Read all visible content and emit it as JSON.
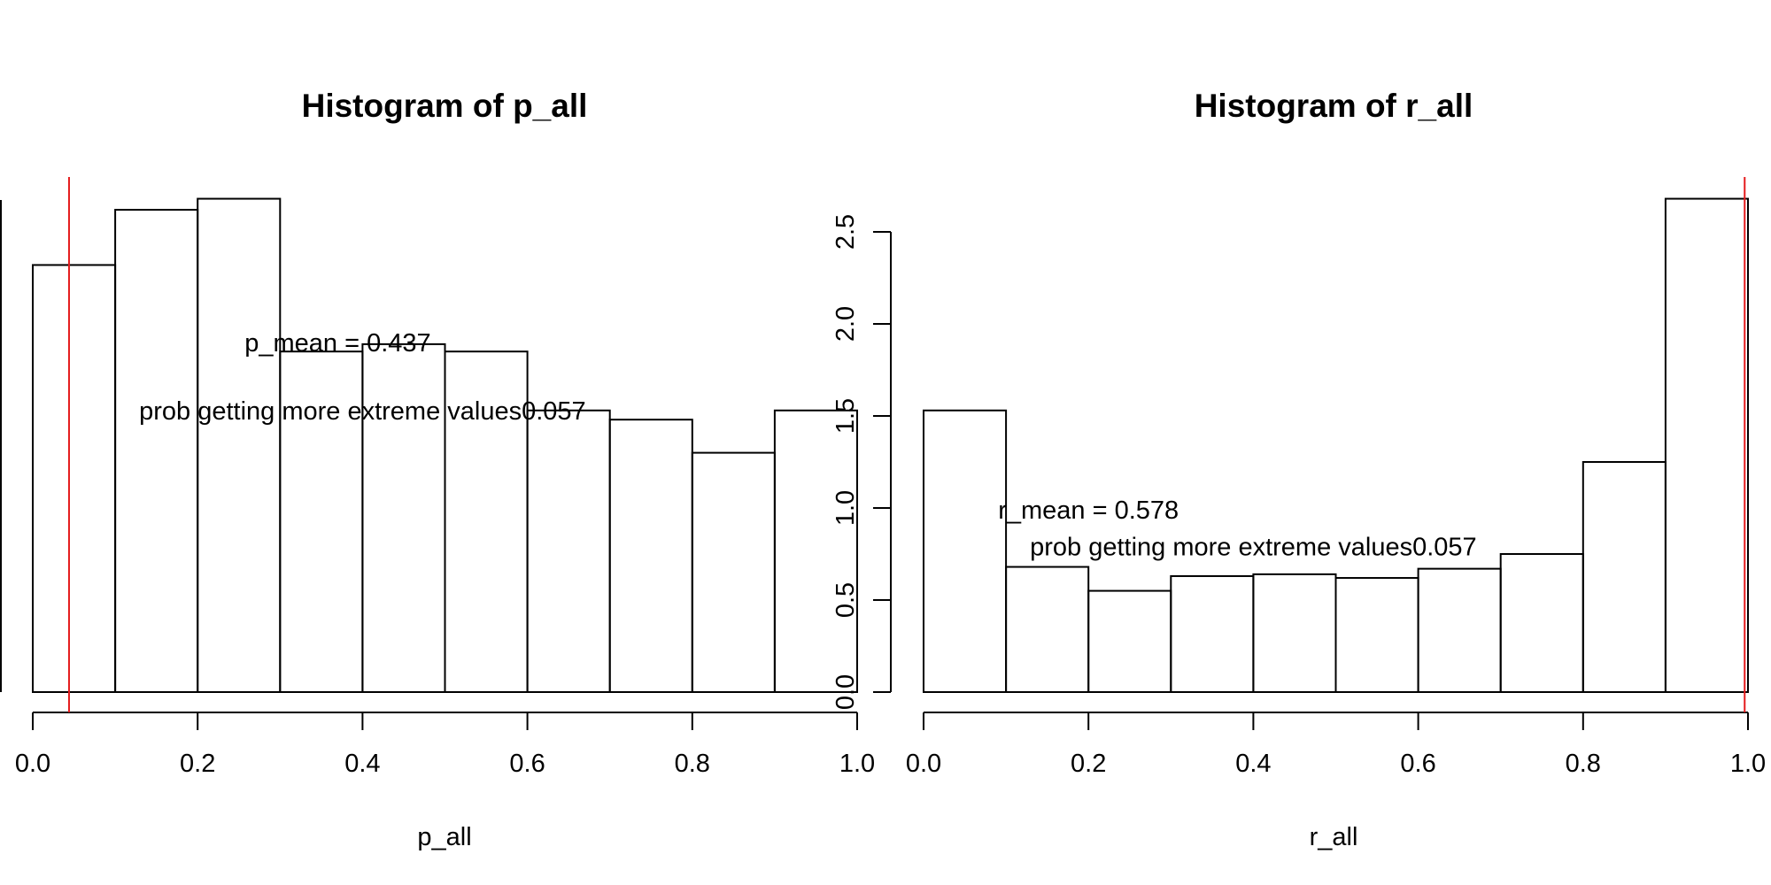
{
  "chart_data": [
    {
      "type": "bar",
      "title": "Histogram of p_all",
      "xlabel": "p_all",
      "ylabel": "",
      "xlim": [
        0,
        1
      ],
      "ylim": [
        0,
        2.7
      ],
      "bin_edges": [
        0.0,
        0.1,
        0.2,
        0.3,
        0.4,
        0.5,
        0.6,
        0.7,
        0.8,
        0.9,
        1.0
      ],
      "values": [
        2.32,
        2.62,
        2.68,
        1.85,
        1.89,
        1.85,
        1.53,
        1.48,
        1.3,
        1.53
      ],
      "x_ticks": [
        "0.0",
        "0.2",
        "0.4",
        "0.6",
        "0.8",
        "1.0"
      ],
      "y_ticks": [],
      "ref_line_x": 0.044,
      "ref_line_color": "#e41a1c",
      "annotations": [
        {
          "text": "p_mean = 0.437",
          "x": 0.37,
          "y": 1.9
        },
        {
          "text": "prob getting more extreme values0.057",
          "x": 0.4,
          "y": 1.53
        }
      ]
    },
    {
      "type": "bar",
      "title": "Histogram of r_all",
      "xlabel": "r_all",
      "ylabel": "",
      "xlim": [
        0,
        1
      ],
      "ylim": [
        0,
        2.7
      ],
      "bin_edges": [
        0.0,
        0.1,
        0.2,
        0.3,
        0.4,
        0.5,
        0.6,
        0.7,
        0.8,
        0.9,
        1.0
      ],
      "values": [
        1.53,
        0.68,
        0.55,
        0.63,
        0.64,
        0.62,
        0.67,
        0.75,
        1.25,
        2.68
      ],
      "x_ticks": [
        "0.0",
        "0.2",
        "0.4",
        "0.6",
        "0.8",
        "1.0"
      ],
      "y_ticks": [
        "0.0",
        "0.5",
        "1.0",
        "1.5",
        "2.0",
        "2.5"
      ],
      "ref_line_x": 0.996,
      "ref_line_color": "#e41a1c",
      "annotations": [
        {
          "text": "r_mean = 0.578",
          "x": 0.2,
          "y": 0.99
        },
        {
          "text": "prob getting more extreme values0.057",
          "x": 0.4,
          "y": 0.79
        }
      ]
    }
  ]
}
